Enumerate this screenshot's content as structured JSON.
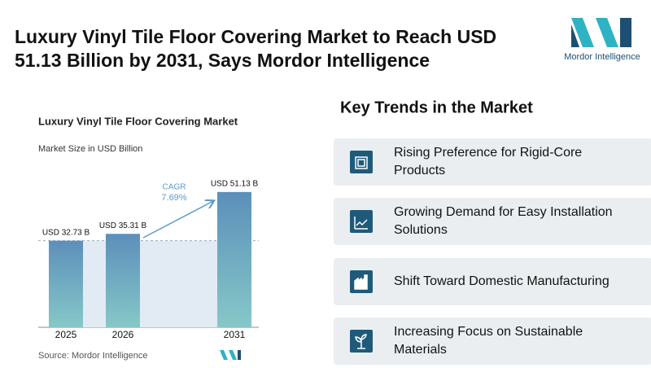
{
  "header": {
    "title_lines": [
      "Luxury Vinyl Tile Floor Covering Market to Reach USD",
      "51.13 Billion by 2031, Says Mordor Intelligence"
    ],
    "logo_text": "Mordor Intelligence"
  },
  "chart_data": {
    "type": "bar",
    "title": "Luxury Vinyl Tile Floor Covering Market",
    "subtitle": "Market Size in USD Billion",
    "categories": [
      "2025",
      "2026",
      "2031"
    ],
    "values": [
      32.73,
      35.31,
      51.13
    ],
    "value_labels": [
      "USD 32.73 B",
      "USD 35.31 B",
      "USD 51.13 B"
    ],
    "annotation": {
      "label": "CAGR",
      "text": "7.69%"
    },
    "source": "Source: Mordor Intelligence"
  },
  "trends": {
    "title": "Key Trends in the Market",
    "items": [
      [
        "Rising Preference for Rigid-Core",
        "Products"
      ],
      [
        "Growing Demand for Easy Installation",
        "Solutions"
      ],
      [
        "Shift Toward Domestic Manufacturing"
      ],
      [
        "Increasing Focus on Sustainable",
        "Materials"
      ]
    ]
  }
}
